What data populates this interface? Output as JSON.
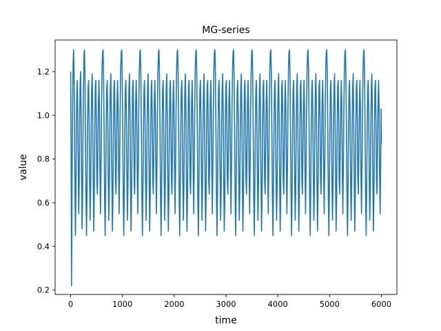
{
  "chart_data": {
    "type": "line",
    "title": "MG-series",
    "xlabel": "time",
    "ylabel": "value",
    "xlim": [
      -300,
      6300
    ],
    "ylim": [
      0.18,
      1.345
    ],
    "xticks": [
      0,
      1000,
      2000,
      3000,
      4000,
      5000,
      6000
    ],
    "yticks": [
      0.2,
      0.4,
      0.6,
      0.8,
      1.0,
      1.2
    ],
    "xtick_labels": [
      "0",
      "1000",
      "2000",
      "3000",
      "4000",
      "5000",
      "6000"
    ],
    "ytick_labels": [
      "0.2",
      "0.4",
      "0.6",
      "0.8",
      "1.0",
      "1.2"
    ],
    "grid": false,
    "series": [
      {
        "color": "#1f77b4",
        "points": [
          [
            0,
            1.2
          ],
          [
            6,
            0.96
          ],
          [
            12,
            0.6
          ],
          [
            17,
            0.22
          ],
          [
            22,
            0.45
          ],
          [
            30,
            0.79
          ],
          [
            38,
            1.05
          ],
          [
            47,
            1.23
          ],
          [
            56,
            1.3
          ],
          [
            66,
            1.2
          ],
          [
            75,
            0.95
          ],
          [
            84,
            0.62
          ],
          [
            92,
            0.45
          ],
          [
            101,
            0.66
          ],
          [
            110,
            0.93
          ],
          [
            120,
            1.12
          ],
          [
            129,
            1.16
          ],
          [
            138,
            1.0
          ],
          [
            147,
            0.72
          ],
          [
            156,
            0.55
          ],
          [
            165,
            0.7
          ],
          [
            174,
            0.96
          ],
          [
            183,
            1.15
          ],
          [
            193,
            1.2
          ],
          [
            202,
            1.02
          ],
          [
            211,
            0.72
          ],
          [
            220,
            0.48
          ],
          [
            229,
            0.6
          ],
          [
            238,
            0.88
          ],
          [
            248,
            1.13
          ],
          [
            257,
            1.28
          ],
          [
            266,
            1.3
          ]
        ],
        "pattern": {
          "start": 266,
          "end": 6000,
          "cycle_length": 360,
          "cycle": [
            [
              0,
              1.3
            ],
            [
              10,
              1.18
            ],
            [
              20,
              0.92
            ],
            [
              30,
              0.62
            ],
            [
              40,
              0.45
            ],
            [
              50,
              0.66
            ],
            [
              60,
              0.93
            ],
            [
              70,
              1.12
            ],
            [
              80,
              1.16
            ],
            [
              90,
              1.0
            ],
            [
              100,
              0.72
            ],
            [
              110,
              0.52
            ],
            [
              120,
              0.66
            ],
            [
              130,
              0.94
            ],
            [
              140,
              1.13
            ],
            [
              150,
              1.19
            ],
            [
              160,
              1.0
            ],
            [
              170,
              0.7
            ],
            [
              180,
              0.47
            ],
            [
              190,
              0.62
            ],
            [
              200,
              0.92
            ],
            [
              210,
              1.13
            ],
            [
              220,
              1.16
            ],
            [
              230,
              0.98
            ],
            [
              240,
              0.7
            ],
            [
              250,
              0.64
            ],
            [
              260,
              0.85
            ],
            [
              270,
              1.06
            ],
            [
              280,
              1.16
            ],
            [
              290,
              1.03
            ],
            [
              300,
              0.74
            ],
            [
              310,
              0.55
            ],
            [
              320,
              0.76
            ],
            [
              330,
              1.03
            ],
            [
              340,
              1.21
            ],
            [
              350,
              1.29
            ],
            [
              360,
              1.3
            ]
          ],
          "last_value": 0.87
        }
      }
    ]
  }
}
